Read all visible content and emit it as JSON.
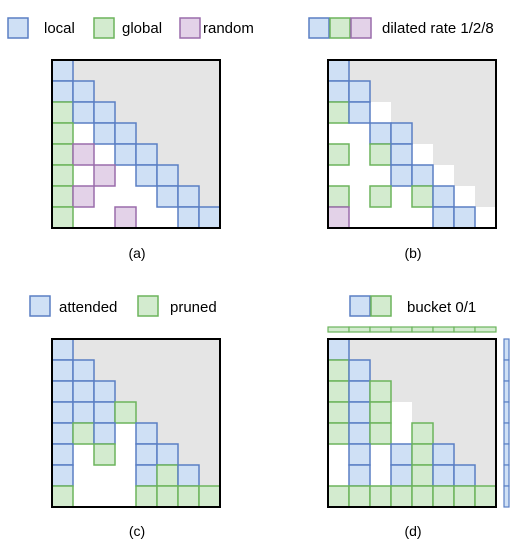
{
  "colors": {
    "local_fill": "#cfe0f5",
    "local_stroke": "#5a7fc4",
    "global_fill": "#d3ebcf",
    "global_stroke": "#6cb45c",
    "random_fill": "#e3d2e8",
    "random_stroke": "#9a6cab",
    "masked_fill": "#e5e5e5",
    "frame": "#000000"
  },
  "legends": {
    "a": {
      "local": "local",
      "global": "global",
      "random": "random"
    },
    "b": {
      "dilated": "dilated rate 1/2/8"
    },
    "c": {
      "attended": "attended",
      "pruned": "pruned"
    },
    "d": {
      "bucket": "bucket 0/1"
    }
  },
  "captions": {
    "a": "(a)",
    "b": "(b)",
    "c": "(c)",
    "d": "(d)"
  },
  "panels": {
    "a": {
      "size": 8,
      "cells": [
        [
          0,
          0,
          "L"
        ],
        [
          1,
          0,
          "L"
        ],
        [
          1,
          1,
          "L"
        ],
        [
          2,
          0,
          "G"
        ],
        [
          2,
          1,
          "L"
        ],
        [
          2,
          2,
          "L"
        ],
        [
          3,
          0,
          "G"
        ],
        [
          3,
          2,
          "L"
        ],
        [
          3,
          3,
          "L"
        ],
        [
          4,
          0,
          "G"
        ],
        [
          4,
          1,
          "R"
        ],
        [
          4,
          3,
          "L"
        ],
        [
          4,
          4,
          "L"
        ],
        [
          5,
          0,
          "G"
        ],
        [
          5,
          2,
          "R"
        ],
        [
          5,
          4,
          "L"
        ],
        [
          5,
          5,
          "L"
        ],
        [
          6,
          0,
          "G"
        ],
        [
          6,
          1,
          "R"
        ],
        [
          6,
          5,
          "L"
        ],
        [
          6,
          6,
          "L"
        ],
        [
          7,
          0,
          "G"
        ],
        [
          7,
          3,
          "R"
        ],
        [
          7,
          6,
          "L"
        ],
        [
          7,
          7,
          "L"
        ]
      ]
    },
    "b": {
      "size": 8,
      "cells": [
        [
          0,
          0,
          "L"
        ],
        [
          1,
          0,
          "L"
        ],
        [
          1,
          1,
          "L"
        ],
        [
          2,
          0,
          "G"
        ],
        [
          2,
          1,
          "L"
        ],
        [
          3,
          2,
          "L"
        ],
        [
          3,
          3,
          "L"
        ],
        [
          4,
          0,
          "G"
        ],
        [
          4,
          2,
          "G"
        ],
        [
          4,
          3,
          "L"
        ],
        [
          5,
          3,
          "L"
        ],
        [
          5,
          4,
          "L"
        ],
        [
          6,
          0,
          "G"
        ],
        [
          6,
          2,
          "G"
        ],
        [
          6,
          4,
          "G"
        ],
        [
          6,
          5,
          "L"
        ],
        [
          7,
          0,
          "R"
        ],
        [
          7,
          5,
          "L"
        ],
        [
          7,
          6,
          "L"
        ]
      ]
    },
    "c": {
      "size": 8,
      "cells": [
        [
          0,
          0,
          "L"
        ],
        [
          1,
          0,
          "L"
        ],
        [
          1,
          1,
          "L"
        ],
        [
          2,
          0,
          "L"
        ],
        [
          2,
          1,
          "L"
        ],
        [
          2,
          2,
          "L"
        ],
        [
          3,
          0,
          "L"
        ],
        [
          3,
          1,
          "L"
        ],
        [
          3,
          2,
          "L"
        ],
        [
          3,
          3,
          "G"
        ],
        [
          4,
          0,
          "L"
        ],
        [
          4,
          1,
          "G"
        ],
        [
          4,
          2,
          "L"
        ],
        [
          4,
          4,
          "L"
        ],
        [
          5,
          0,
          "L"
        ],
        [
          5,
          2,
          "G"
        ],
        [
          5,
          4,
          "L"
        ],
        [
          5,
          5,
          "L"
        ],
        [
          6,
          0,
          "L"
        ],
        [
          6,
          4,
          "L"
        ],
        [
          6,
          5,
          "G"
        ],
        [
          6,
          6,
          "L"
        ],
        [
          7,
          0,
          "G"
        ],
        [
          7,
          4,
          "G"
        ],
        [
          7,
          5,
          "G"
        ],
        [
          7,
          6,
          "G"
        ],
        [
          7,
          7,
          "G"
        ]
      ]
    },
    "d": {
      "size": 8,
      "cells": [
        [
          0,
          0,
          "L"
        ],
        [
          1,
          0,
          "G"
        ],
        [
          1,
          1,
          "L"
        ],
        [
          2,
          0,
          "G"
        ],
        [
          2,
          1,
          "L"
        ],
        [
          2,
          2,
          "G"
        ],
        [
          3,
          0,
          "G"
        ],
        [
          3,
          1,
          "L"
        ],
        [
          3,
          2,
          "G"
        ],
        [
          4,
          0,
          "G"
        ],
        [
          4,
          1,
          "L"
        ],
        [
          4,
          2,
          "G"
        ],
        [
          4,
          4,
          "G"
        ],
        [
          5,
          1,
          "L"
        ],
        [
          5,
          3,
          "L"
        ],
        [
          5,
          4,
          "G"
        ],
        [
          5,
          5,
          "L"
        ],
        [
          6,
          1,
          "L"
        ],
        [
          6,
          3,
          "L"
        ],
        [
          6,
          4,
          "G"
        ],
        [
          6,
          5,
          "L"
        ],
        [
          6,
          6,
          "L"
        ],
        [
          7,
          0,
          "G"
        ],
        [
          7,
          1,
          "G"
        ],
        [
          7,
          2,
          "G"
        ],
        [
          7,
          3,
          "G"
        ],
        [
          7,
          4,
          "G"
        ],
        [
          7,
          5,
          "G"
        ],
        [
          7,
          6,
          "G"
        ],
        [
          7,
          7,
          "G"
        ]
      ],
      "top_strip": [
        "G",
        "G",
        "G",
        "G",
        "G",
        "G",
        "G",
        "G"
      ],
      "right_strip": [
        "L",
        "L",
        "L",
        "L",
        "L",
        "L",
        "L",
        "L"
      ]
    }
  }
}
